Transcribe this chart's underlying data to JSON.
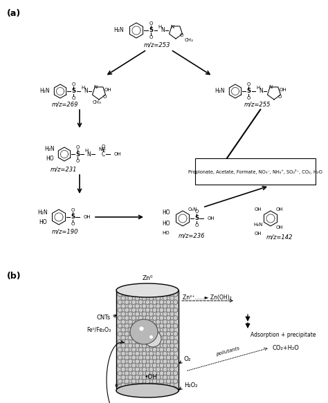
{
  "bg_color": "#ffffff",
  "fig_width": 4.74,
  "fig_height": 5.83,
  "panel_a_label": "(a)",
  "panel_b_label": "(b)",
  "smx_label": "m/z=253",
  "prod269_label": "m/z=269",
  "prod255_label": "m/z=255",
  "prod231_label": "m/z=231",
  "prod190_label": "m/z=190",
  "prod236_label": "m/z=236",
  "prod142_label": "m/z=142",
  "zn0_label": "Zn⁰",
  "adsorption_label": "Adsorption + precipitate",
  "cnts_label": "CNTs",
  "o2_label": "O₂",
  "h2o2_label": "H₂O₂",
  "oh_label": "•OH",
  "fe_label": "Fe⁰/Fe₂O₃",
  "pollutants_label": "pollutants",
  "co2h2o_label": "CO₂+H₂O",
  "e_label": "e⁻"
}
